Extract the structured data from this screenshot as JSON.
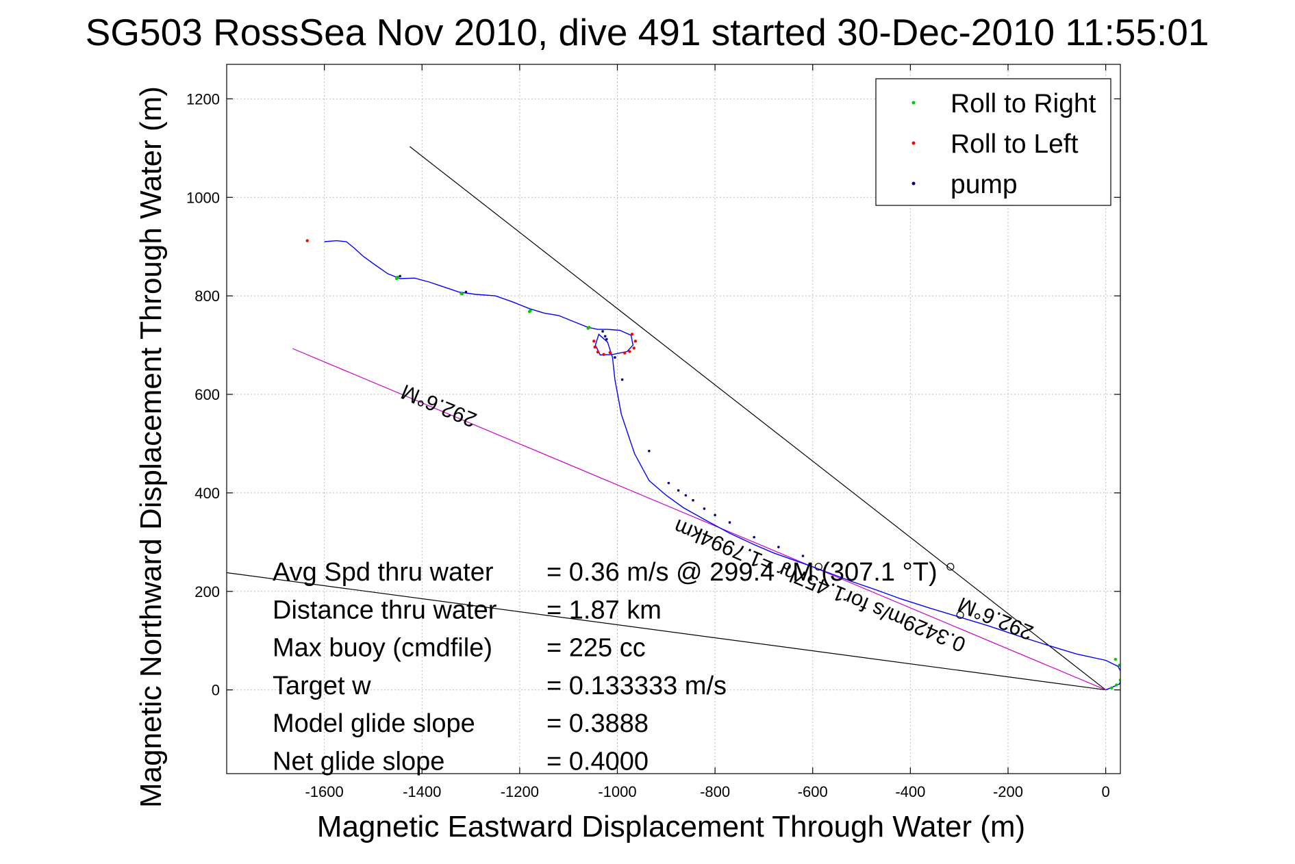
{
  "chart_data": {
    "type": "line",
    "title": "SG503 RossSea Nov 2010, dive 491 started 30-Dec-2010 11:55:01",
    "xlabel": "Magnetic Eastward Displacement Through Water (m)",
    "ylabel": "Magnetic Northward Displacement Through Water (m)",
    "xlim": [
      -1800,
      30
    ],
    "ylim": [
      -170,
      1270
    ],
    "xticks": [
      -1600,
      -1400,
      -1200,
      -1000,
      -800,
      -600,
      -400,
      -200,
      0
    ],
    "xtick_labels": [
      "-1600",
      "-1400",
      "-1200",
      "-1000",
      "-800",
      "-600",
      "-400",
      "-200",
      "0"
    ],
    "yticks": [
      0,
      200,
      400,
      600,
      800,
      1000,
      1200
    ],
    "ytick_labels": [
      "0",
      "200",
      "400",
      "600",
      "800",
      "1000",
      "1200"
    ],
    "grid": true,
    "legend_position": "top-right",
    "legend": [
      {
        "label": "Roll to Right",
        "color": "#00cc00"
      },
      {
        "label": "Roll to Left",
        "color": "#ff0000"
      },
      {
        "label": "pump",
        "color": "#000080"
      }
    ],
    "colors": {
      "track": "#0000ff",
      "heading_line": "#cc00cc",
      "reference_line": "#000000",
      "axes": "#000000",
      "grid": "#bbbbbb"
    },
    "track": {
      "x": [
        -1600,
        -1575,
        -1555,
        -1540,
        -1520,
        -1495,
        -1470,
        -1445,
        -1415,
        -1385,
        -1355,
        -1325,
        -1290,
        -1250,
        -1215,
        -1180,
        -1150,
        -1120,
        -1090,
        -1060,
        -1040,
        -1020,
        -995,
        -972,
        -968,
        -980,
        -1010,
        -1035,
        -1045,
        -1038,
        -1020,
        -1010,
        -1005,
        -992,
        -965,
        -935,
        -900,
        -865,
        -820,
        -770,
        -720,
        -680,
        -640,
        -600,
        -560,
        -520,
        -470,
        -420,
        -360,
        -300,
        -240,
        -180,
        -120,
        -60,
        0,
        25,
        35,
        28,
        10,
        0
      ],
      "y": [
        910,
        912,
        910,
        898,
        880,
        862,
        845,
        835,
        836,
        828,
        818,
        808,
        803,
        800,
        788,
        774,
        765,
        760,
        748,
        736,
        732,
        732,
        730,
        720,
        700,
        687,
        681,
        680,
        700,
        722,
        706,
        675,
        630,
        560,
        480,
        425,
        395,
        370,
        345,
        318,
        295,
        278,
        264,
        250,
        235,
        220,
        203,
        185,
        166,
        148,
        130,
        110,
        91,
        73,
        60,
        48,
        30,
        12,
        4,
        0
      ]
    },
    "roll_right_points": {
      "x": [
        -1450,
        -1452,
        -1318,
        -1320,
        -1178,
        -1180,
        -1058,
        -1060,
        20,
        28,
        33,
        30,
        22,
        12
      ],
      "y": [
        838,
        835,
        804,
        805,
        770,
        768,
        736,
        734,
        62,
        50,
        35,
        20,
        10,
        4
      ]
    },
    "roll_left_points": {
      "x": [
        -1635,
        -1048,
        -1046,
        -1040,
        -1028,
        -1015,
        -970,
        -963,
        -966,
        -975,
        -985
      ],
      "y": [
        912,
        708,
        696,
        686,
        681,
        685,
        722,
        708,
        694,
        687,
        684
      ]
    },
    "pump_points": {
      "x": [
        -1445,
        -1310,
        -1030,
        -1025,
        -1022,
        -1005,
        -990,
        -935,
        -895,
        -875,
        -860,
        -845,
        -822,
        -800,
        -770,
        -720,
        -670,
        -620
      ],
      "y": [
        840,
        808,
        728,
        718,
        712,
        675,
        630,
        485,
        420,
        405,
        395,
        385,
        368,
        355,
        340,
        310,
        290,
        272
      ]
    },
    "heading_line": {
      "x": [
        -1665,
        0
      ],
      "y": [
        693,
        0
      ]
    },
    "reference_lines": [
      {
        "x": [
          -1425,
          0
        ],
        "y": [
          1103,
          0
        ]
      },
      {
        "x": [
          -1800,
          0
        ],
        "y": [
          238,
          0
        ]
      }
    ],
    "heading_markers": {
      "x": [
        -318,
        -298,
        -588
      ],
      "y": [
        250,
        152,
        250
      ]
    },
    "rotated_labels": [
      {
        "text": "292.6°M",
        "x": -1360,
        "y": 590,
        "angle": 22.6
      },
      {
        "text": "292.6°M",
        "x": -220,
        "y": 158,
        "angle": 22.6
      },
      {
        "text": "0.3429m/s for1.457hr =1.7994km",
        "x": -580,
        "y": 225,
        "angle": 22.6
      }
    ],
    "annotations": [
      {
        "label": "Avg Spd thru water",
        "value": "=  0.36 m/s @ 299.4 °M (307.1 °T)"
      },
      {
        "label": "Distance thru water",
        "value": "=  1.87 km"
      },
      {
        "label": "Max buoy (cmdfile)",
        "value": "= 225 cc"
      },
      {
        "label": "Target w",
        "value": "= 0.133333 m/s"
      },
      {
        "label": "Model glide slope",
        "value": "= 0.3888"
      },
      {
        "label": "Net glide slope",
        "value": "= 0.4000"
      }
    ]
  }
}
